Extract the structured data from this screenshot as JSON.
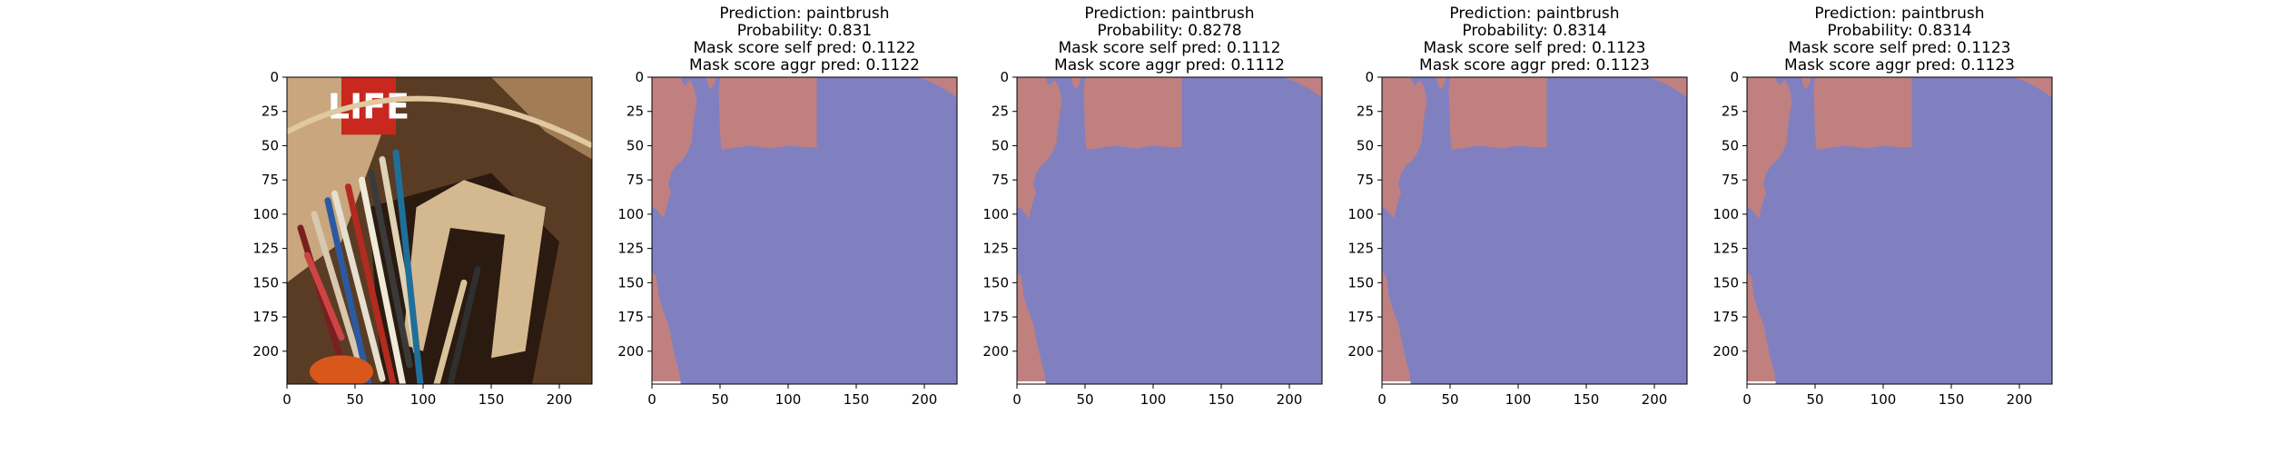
{
  "figure": {
    "photo_alt": "jar of paintbrushes in front of a LIFE magazine",
    "photo_sign_text": "LIFE"
  },
  "colors": {
    "mask_background": "#8080c0",
    "mask_foreground": "#c08080",
    "photo_dark": "#2a1a10",
    "photo_frame": "#d4b890"
  },
  "chart_data": [
    {
      "type": "image",
      "name": "input-image",
      "title": [],
      "xlim": [
        0,
        224
      ],
      "ylim": [
        224,
        0
      ],
      "xticks": [
        0,
        50,
        100,
        150,
        200
      ],
      "yticks": [
        0,
        25,
        50,
        75,
        100,
        125,
        150,
        175,
        200
      ]
    },
    {
      "type": "heatmap",
      "name": "mask-1",
      "title": [
        "Prediction: paintbrush",
        "Probability: 0.831",
        "Mask score self pred: 0.1122",
        "Mask score aggr pred: 0.1122"
      ],
      "xlim": [
        0,
        224
      ],
      "ylim": [
        224,
        0
      ],
      "xticks": [
        0,
        50,
        100,
        150,
        200
      ],
      "yticks": [
        0,
        25,
        50,
        75,
        100,
        125,
        150,
        175,
        200
      ]
    },
    {
      "type": "heatmap",
      "name": "mask-2",
      "title": [
        "Prediction: paintbrush",
        "Probability: 0.8278",
        "Mask score self pred: 0.1112",
        "Mask score aggr pred: 0.1112"
      ],
      "xlim": [
        0,
        224
      ],
      "ylim": [
        224,
        0
      ],
      "xticks": [
        0,
        50,
        100,
        150,
        200
      ],
      "yticks": [
        0,
        25,
        50,
        75,
        100,
        125,
        150,
        175,
        200
      ]
    },
    {
      "type": "heatmap",
      "name": "mask-3",
      "title": [
        "Prediction: paintbrush",
        "Probability: 0.8314",
        "Mask score self pred: 0.1123",
        "Mask score aggr pred: 0.1123"
      ],
      "xlim": [
        0,
        224
      ],
      "ylim": [
        224,
        0
      ],
      "xticks": [
        0,
        50,
        100,
        150,
        200
      ],
      "yticks": [
        0,
        25,
        50,
        75,
        100,
        125,
        150,
        175,
        200
      ]
    },
    {
      "type": "heatmap",
      "name": "mask-4",
      "title": [
        "Prediction: paintbrush",
        "Probability: 0.8314",
        "Mask score self pred: 0.1123",
        "Mask score aggr pred: 0.1123"
      ],
      "xlim": [
        0,
        224
      ],
      "ylim": [
        224,
        0
      ],
      "xticks": [
        0,
        50,
        100,
        150,
        200
      ],
      "yticks": [
        0,
        25,
        50,
        75,
        100,
        125,
        150,
        175,
        200
      ]
    }
  ]
}
